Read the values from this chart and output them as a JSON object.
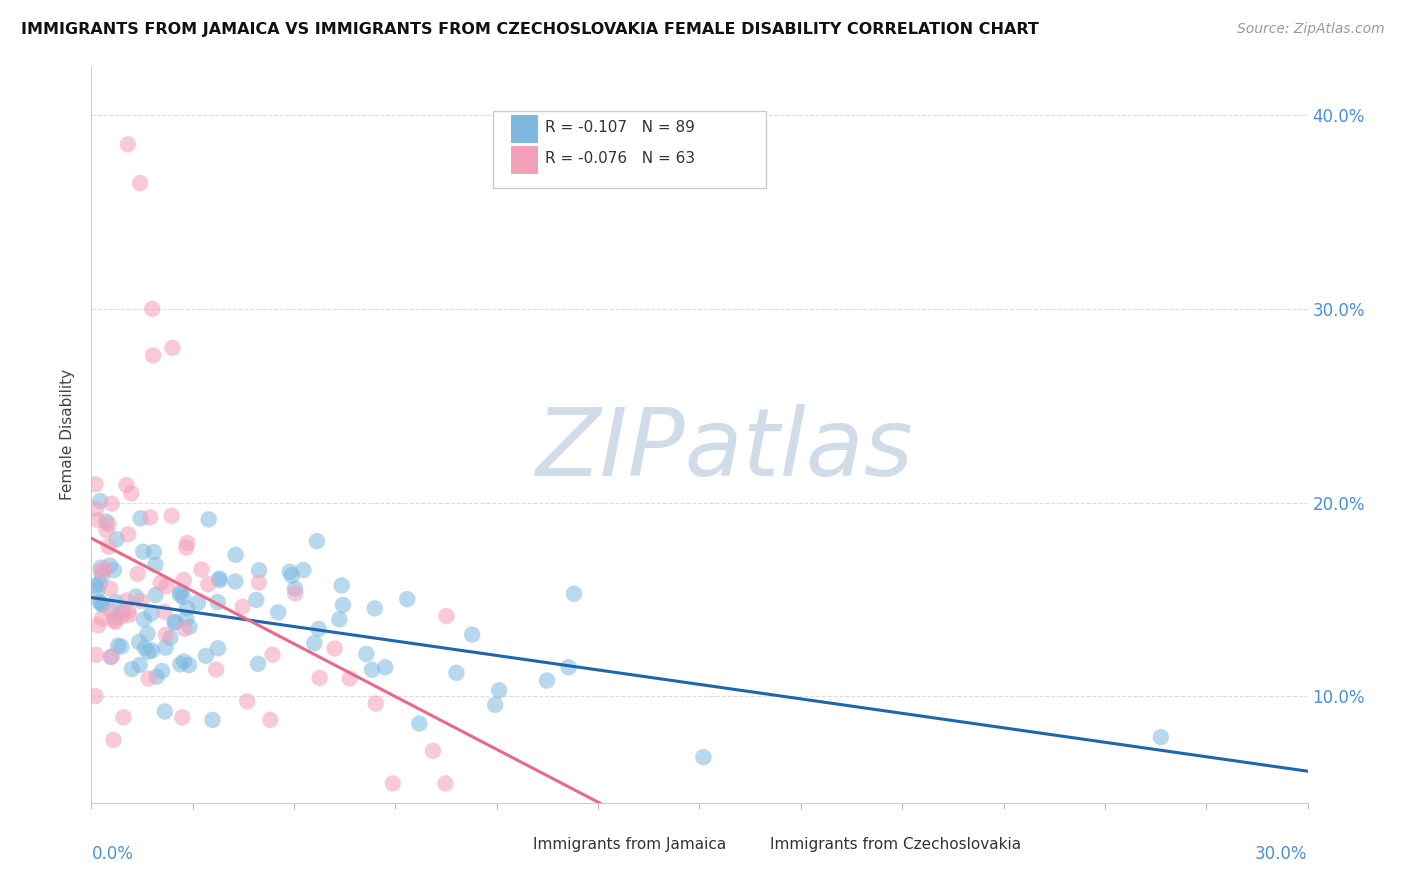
{
  "title": "IMMIGRANTS FROM JAMAICA VS IMMIGRANTS FROM CZECHOSLOVAKIA FEMALE DISABILITY CORRELATION CHART",
  "source": "Source: ZipAtlas.com",
  "ylabel": "Female Disability",
  "legend1_r": "R = -0.107",
  "legend1_n": "N = 89",
  "legend2_r": "R = -0.076",
  "legend2_n": "N = 63",
  "color_blue": "#7eb8e0",
  "color_pink": "#f4a0b8",
  "color_blue_line": "#2166ac",
  "color_pink_line": "#e8698a",
  "color_axis_label": "#4a90d9",
  "color_source": "#999999",
  "color_grid": "#dddddd",
  "xlim": [
    0.0,
    0.3
  ],
  "ylim": [
    0.045,
    0.425
  ],
  "yticks": [
    0.1,
    0.2,
    0.3,
    0.4
  ],
  "ytick_labels": [
    "10.0%",
    "20.0%",
    "30.0%",
    "40.0%"
  ],
  "background_color": "#ffffff",
  "watermark_text": "ZIPatlas",
  "watermark_color": "#d0dde8",
  "jamaica_r": -0.107,
  "czech_r": -0.076,
  "seed_jamaica": 77,
  "seed_czech": 42
}
